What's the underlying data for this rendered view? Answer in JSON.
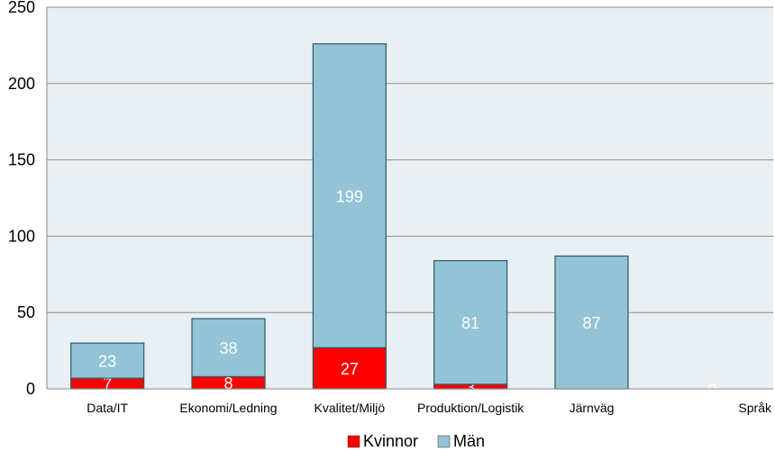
{
  "chart_data": {
    "type": "bar",
    "stacked": true,
    "categories": [
      "Data/IT",
      "Ekonomi/Ledning",
      "Kvalitet/Miljö",
      "Produktion/Logistik",
      "Järnväg",
      "Språk"
    ],
    "series": [
      {
        "name": "Kvinnor",
        "values": [
          7,
          8,
          27,
          3,
          0,
          0
        ],
        "color": "#ff0000"
      },
      {
        "name": "Män",
        "values": [
          23,
          38,
          199,
          81,
          87,
          0
        ],
        "color": "#93c3d5"
      }
    ],
    "ylim": [
      0,
      250
    ],
    "yticks": [
      0,
      50,
      100,
      150,
      200,
      250
    ],
    "grid": true,
    "legend": "bottom",
    "plot_background": "#e9eff2"
  }
}
